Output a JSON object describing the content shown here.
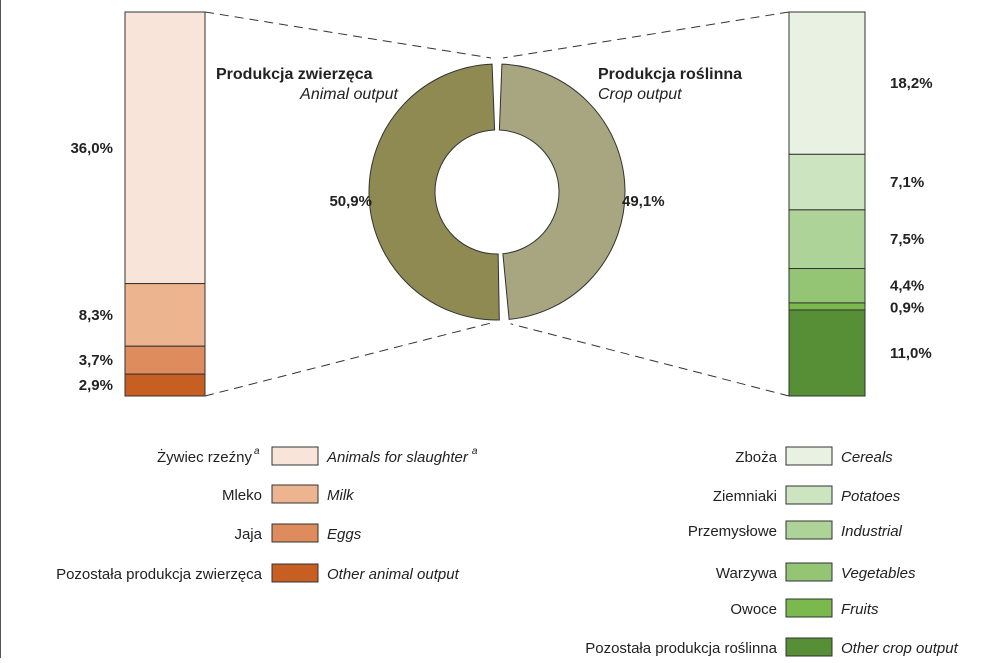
{
  "chart_data": {
    "type": "pie",
    "donut": {
      "slices": [
        {
          "label": "50,9%",
          "value": 50.9,
          "color": "#8e8a52"
        },
        {
          "label": "49,1%",
          "value": 49.1,
          "color": "#a7a681"
        }
      ]
    },
    "animal": {
      "title": "Produkcja zwierzęca",
      "subtitle": "Animal output",
      "segments": [
        {
          "pl": "Żywiec rzeźny",
          "en": "Animals for slaughter",
          "sup": "a",
          "value": 36.0,
          "label": "36,0%",
          "color": "#f8e4d8"
        },
        {
          "pl": "Mleko",
          "en": "Milk",
          "sup": "",
          "value": 8.3,
          "label": "8,3%",
          "color": "#ecb48f"
        },
        {
          "pl": "Jaja",
          "en": "Eggs",
          "sup": "",
          "value": 3.7,
          "label": "3,7%",
          "color": "#de8c5e"
        },
        {
          "pl": "Pozostała produkcja zwierzęca",
          "en": "Other animal output",
          "sup": "",
          "value": 2.9,
          "label": "2,9%",
          "color": "#c75f22"
        }
      ]
    },
    "crop": {
      "title": "Produkcja roślinna",
      "subtitle": "Crop output",
      "segments": [
        {
          "pl": "Zboża",
          "en": "Cereals",
          "value": 18.2,
          "label": "18,2%",
          "color": "#e9f2e2"
        },
        {
          "pl": "Ziemniaki",
          "en": "Potatoes",
          "value": 7.1,
          "label": "7,1%",
          "color": "#cce4c0"
        },
        {
          "pl": "Przemysłowe",
          "en": "Industrial",
          "value": 7.5,
          "label": "7,5%",
          "color": "#aed398"
        },
        {
          "pl": "Warzywa",
          "en": "Vegetables",
          "value": 4.4,
          "label": "4,4%",
          "color": "#93c574"
        },
        {
          "pl": "Owoce",
          "en": "Fruits",
          "value": 0.9,
          "label": "0,9%",
          "color": "#7bb84d"
        },
        {
          "pl": "Pozostała produkcja roślinna",
          "en": "Other crop output",
          "value": 11.0,
          "label": "11,0%",
          "color": "#568f35"
        }
      ]
    }
  }
}
